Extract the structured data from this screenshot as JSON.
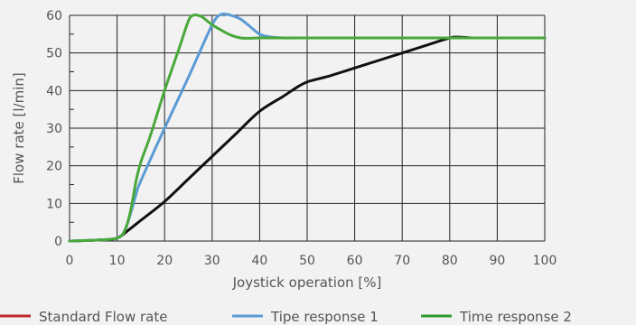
{
  "chart_data": {
    "type": "line",
    "xlabel": "Joystick operation [%]",
    "ylabel": "Flow rate [l/min]",
    "xlim": [
      0,
      100
    ],
    "ylim": [
      0,
      60
    ],
    "x_ticks": [
      0,
      10,
      20,
      30,
      40,
      50,
      60,
      70,
      80,
      90,
      100
    ],
    "y_ticks": [
      0,
      10,
      20,
      30,
      40,
      50,
      60
    ],
    "grid": true,
    "legend_position": "bottom",
    "series": [
      {
        "name": "Standard Flow rate",
        "color": "#111111",
        "legend_color": "#c0272d",
        "x": [
          0,
          5,
          9,
          10,
          11,
          12,
          15,
          20,
          25,
          30,
          35,
          40,
          45,
          48,
          50,
          52,
          55,
          60,
          65,
          70,
          75,
          80,
          82,
          85,
          90,
          100
        ],
        "y": [
          0,
          0.2,
          0.5,
          0.8,
          1.5,
          2.5,
          5.5,
          10.5,
          16.5,
          22.5,
          28.5,
          34.5,
          38.5,
          41,
          42.3,
          43,
          44,
          46,
          48,
          50,
          52,
          54,
          54.2,
          54,
          54,
          54
        ]
      },
      {
        "name": "Tipe response 1",
        "color": "#5b9bd5",
        "legend_color": "#5b9bd5",
        "x": [
          0,
          5,
          9,
          10,
          11,
          12,
          13,
          14,
          15,
          20,
          25,
          28,
          30,
          31,
          32,
          33,
          34,
          36,
          38,
          40,
          42,
          45,
          50,
          60,
          80,
          100
        ],
        "y": [
          0,
          0.2,
          0.5,
          0.8,
          1.5,
          4,
          8,
          12.5,
          16,
          30,
          43.5,
          52,
          57.5,
          59.5,
          60.3,
          60.3,
          60,
          59,
          57,
          55,
          54.3,
          54,
          54,
          54,
          54,
          54
        ]
      },
      {
        "name": "Time response 2",
        "color": "#4aa83b",
        "legend_color": "#2e9a2e",
        "x": [
          0,
          5,
          9,
          10,
          11,
          12,
          13,
          14,
          15,
          17,
          20,
          23,
          25,
          26,
          27,
          28,
          30,
          32,
          34,
          36,
          38,
          40,
          45,
          50,
          60,
          80,
          100
        ],
        "y": [
          0,
          0.2,
          0.5,
          0.8,
          1.5,
          4,
          9,
          16,
          21,
          28,
          40,
          51,
          58.5,
          60,
          60,
          59.5,
          57.5,
          56,
          54.7,
          54,
          53.9,
          54,
          54,
          54,
          54,
          54,
          54
        ]
      }
    ]
  }
}
